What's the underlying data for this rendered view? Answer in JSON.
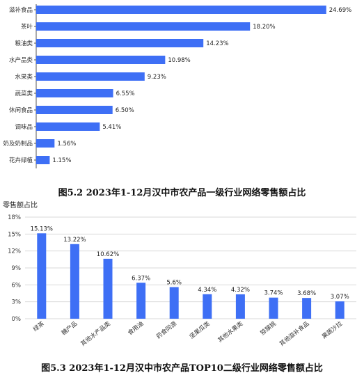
{
  "chart_data": [
    {
      "type": "bar",
      "orientation": "horizontal",
      "categories": [
        "滋补食品",
        "茶叶",
        "粮油类",
        "水产品类",
        "水果类",
        "蔬菜类",
        "休闲食品",
        "调味品",
        "奶及奶制品",
        "花卉绿植"
      ],
      "values": [
        24.69,
        18.2,
        14.23,
        10.98,
        9.23,
        6.55,
        6.5,
        5.41,
        1.56,
        1.15
      ],
      "value_labels": [
        "24.69%",
        "18.20%",
        "14.23%",
        "10.98%",
        "9.23%",
        "6.55%",
        "6.50%",
        "5.41%",
        "1.56%",
        "1.15%"
      ],
      "title": "图5.2 2023年1-12月汉中市农产品一级行业网络零售额占比",
      "unit": "%",
      "xlim": [
        0,
        25
      ],
      "bar_color": "#3e6ff5",
      "grid": false
    },
    {
      "type": "bar",
      "orientation": "vertical",
      "categories": [
        "绿茶",
        "糖产品",
        "其他水产品类",
        "食用油",
        "药食同源",
        "坚果瓜类",
        "其他水果类",
        "猕猴桃",
        "其他滋补食品",
        "果蔬沙拉"
      ],
      "values": [
        15.13,
        13.22,
        10.62,
        6.37,
        5.6,
        4.34,
        4.32,
        3.74,
        3.68,
        3.07
      ],
      "value_labels": [
        "15.13%",
        "13.22%",
        "10.62%",
        "6.37%",
        "5.6%",
        "4.34%",
        "4.32%",
        "3.74%",
        "3.68%",
        "3.07%"
      ],
      "title": "图5.3 2023年1-12月汉中市农产品TOP10二级行业网络零售额占比",
      "ylabel": "零售额占比",
      "yticks": [
        "0%",
        "3%",
        "6%",
        "9%",
        "12%",
        "15%",
        "18%"
      ],
      "ylim": [
        0,
        18
      ],
      "bar_color": "#3e6ff5",
      "grid": true
    }
  ]
}
